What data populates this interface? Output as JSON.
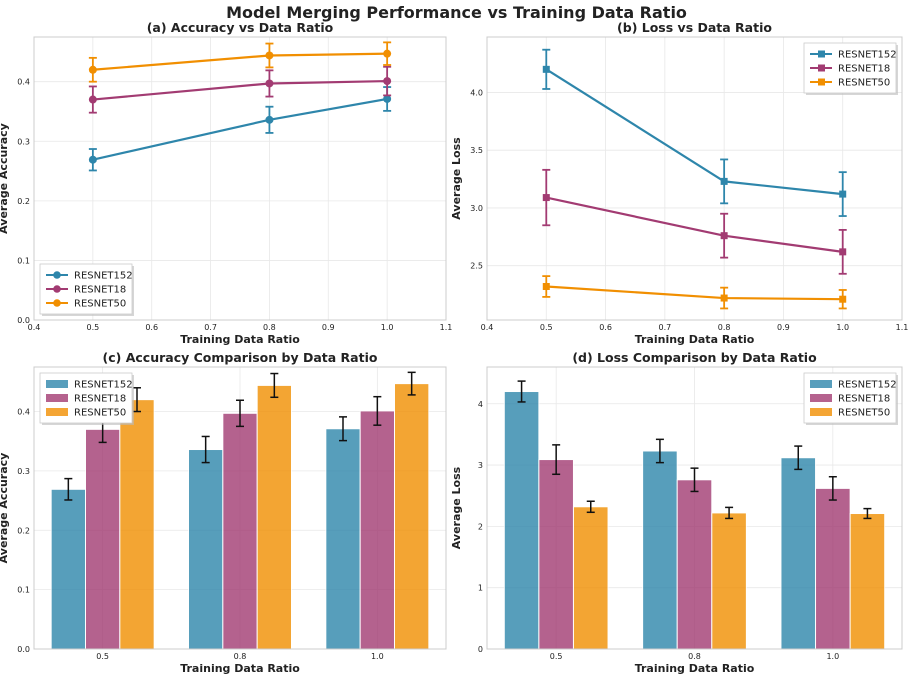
{
  "figure": {
    "title": "Model Merging Performance vs Training Data Ratio"
  },
  "colors": {
    "RESNET152": "#2e86ab",
    "RESNET18": "#a23b72",
    "RESNET50": "#f18f01"
  },
  "chart_data": [
    {
      "id": "a",
      "type": "line",
      "title": "(a) Accuracy vs Data Ratio",
      "xlabel": "Training Data Ratio",
      "ylabel": "Average Accuracy",
      "xlim": [
        0.4,
        1.1
      ],
      "ylim": [
        0.0,
        0.475
      ],
      "xticks": [
        "0.4",
        "0.5",
        "0.6",
        "0.7",
        "0.8",
        "0.9",
        "1.0",
        "1.1"
      ],
      "yticks": [
        "0.0",
        "0.1",
        "0.2",
        "0.3",
        "0.4"
      ],
      "marker": "circle",
      "legend": "lower-left",
      "x": [
        0.5,
        0.8,
        1.0
      ],
      "series": [
        {
          "name": "RESNET152",
          "values": [
            0.269,
            0.336,
            0.371
          ],
          "errors": [
            0.018,
            0.022,
            0.02
          ]
        },
        {
          "name": "RESNET18",
          "values": [
            0.37,
            0.397,
            0.401
          ],
          "errors": [
            0.022,
            0.022,
            0.024
          ]
        },
        {
          "name": "RESNET50",
          "values": [
            0.42,
            0.444,
            0.447
          ],
          "errors": [
            0.02,
            0.02,
            0.019
          ]
        }
      ]
    },
    {
      "id": "b",
      "type": "line",
      "title": "(b) Loss vs Data Ratio",
      "xlabel": "Training Data Ratio",
      "ylabel": "Average Loss",
      "xlim": [
        0.4,
        1.1
      ],
      "ylim": [
        2.03,
        4.48
      ],
      "xticks": [
        "0.4",
        "0.5",
        "0.6",
        "0.7",
        "0.8",
        "0.9",
        "1.0",
        "1.1"
      ],
      "yticks": [
        "2.5",
        "3.0",
        "3.5",
        "4.0"
      ],
      "marker": "square",
      "legend": "top-right",
      "x": [
        0.5,
        0.8,
        1.0
      ],
      "series": [
        {
          "name": "RESNET152",
          "values": [
            4.2,
            3.23,
            3.12
          ],
          "errors": [
            0.17,
            0.19,
            0.19
          ]
        },
        {
          "name": "RESNET18",
          "values": [
            3.09,
            2.76,
            2.62
          ],
          "errors": [
            0.24,
            0.19,
            0.19
          ]
        },
        {
          "name": "RESNET50",
          "values": [
            2.32,
            2.22,
            2.21
          ],
          "errors": [
            0.09,
            0.09,
            0.08
          ]
        }
      ]
    },
    {
      "id": "c",
      "type": "bar",
      "title": "(c) Accuracy Comparison by Data Ratio",
      "xlabel": "Training Data Ratio",
      "ylabel": "Average Accuracy",
      "ylim": [
        0.0,
        0.475
      ],
      "categories": [
        "0.5",
        "0.8",
        "1.0"
      ],
      "yticks": [
        "0.0",
        "0.1",
        "0.2",
        "0.3",
        "0.4"
      ],
      "legend": "top-left",
      "series": [
        {
          "name": "RESNET152",
          "values": [
            0.269,
            0.336,
            0.371
          ],
          "errors": [
            0.018,
            0.022,
            0.02
          ]
        },
        {
          "name": "RESNET18",
          "values": [
            0.37,
            0.397,
            0.401
          ],
          "errors": [
            0.022,
            0.022,
            0.024
          ]
        },
        {
          "name": "RESNET50",
          "values": [
            0.42,
            0.444,
            0.447
          ],
          "errors": [
            0.02,
            0.02,
            0.019
          ]
        }
      ]
    },
    {
      "id": "d",
      "type": "bar",
      "title": "(d) Loss Comparison by Data Ratio",
      "xlabel": "Training Data Ratio",
      "ylabel": "Average Loss",
      "ylim": [
        0.0,
        4.6
      ],
      "categories": [
        "0.5",
        "0.8",
        "1.0"
      ],
      "yticks": [
        "0",
        "1",
        "2",
        "3",
        "4"
      ],
      "legend": "top-right",
      "series": [
        {
          "name": "RESNET152",
          "values": [
            4.2,
            3.23,
            3.12
          ],
          "errors": [
            0.17,
            0.19,
            0.19
          ]
        },
        {
          "name": "RESNET18",
          "values": [
            3.09,
            2.76,
            2.62
          ],
          "errors": [
            0.24,
            0.19,
            0.19
          ]
        },
        {
          "name": "RESNET50",
          "values": [
            2.32,
            2.22,
            2.21
          ],
          "errors": [
            0.09,
            0.09,
            0.08
          ]
        }
      ]
    }
  ]
}
